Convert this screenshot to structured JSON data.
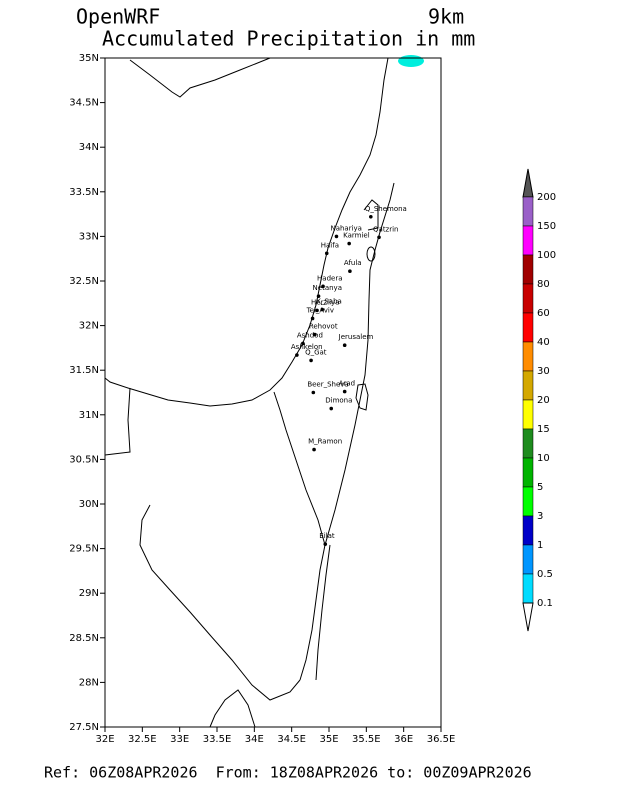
{
  "map": {
    "title": "OpenWRF",
    "resolution": "9km",
    "subtitle": "Accumulated Precipitation in mm",
    "footer": "Ref: 06Z08APR2026  From: 18Z08APR2026 to: 00Z09APR2026",
    "xlim": [
      32,
      36.5
    ],
    "ylim": [
      27.5,
      35
    ],
    "xticks": [
      {
        "value": 32,
        "label": "32E"
      },
      {
        "value": 32.5,
        "label": "32.5E"
      },
      {
        "value": 33,
        "label": "33E"
      },
      {
        "value": 33.5,
        "label": "33.5E"
      },
      {
        "value": 34,
        "label": "34E"
      },
      {
        "value": 34.5,
        "label": "34.5E"
      },
      {
        "value": 35,
        "label": "35E"
      },
      {
        "value": 35.5,
        "label": "35.5E"
      },
      {
        "value": 36,
        "label": "36E"
      },
      {
        "value": 36.5,
        "label": "36.5E"
      }
    ],
    "yticks": [
      {
        "value": 27.5,
        "label": "27.5N"
      },
      {
        "value": 28,
        "label": "28N"
      },
      {
        "value": 28.5,
        "label": "28.5N"
      },
      {
        "value": 29,
        "label": "29N"
      },
      {
        "value": 29.5,
        "label": "29.5N"
      },
      {
        "value": 30,
        "label": "30N"
      },
      {
        "value": 30.5,
        "label": "30.5N"
      },
      {
        "value": 31,
        "label": "31N"
      },
      {
        "value": 31.5,
        "label": "31.5N"
      },
      {
        "value": 32,
        "label": "32N"
      },
      {
        "value": 32.5,
        "label": "32.5N"
      },
      {
        "value": 33,
        "label": "33N"
      },
      {
        "value": 33.5,
        "label": "33.5N"
      },
      {
        "value": 34,
        "label": "34N"
      },
      {
        "value": 34.5,
        "label": "34.5N"
      },
      {
        "value": 35,
        "label": "35N"
      }
    ],
    "cities": [
      {
        "name": "Q_Shemona",
        "lon": 35.56,
        "lat": 33.22
      },
      {
        "name": "Qatzrin",
        "lon": 35.67,
        "lat": 32.99
      },
      {
        "name": "Nahariya",
        "lon": 35.1,
        "lat": 33.0
      },
      {
        "name": "Karmiel",
        "lon": 35.27,
        "lat": 32.92
      },
      {
        "name": "Haifa",
        "lon": 34.97,
        "lat": 32.81
      },
      {
        "name": "Afula",
        "lon": 35.28,
        "lat": 32.61
      },
      {
        "name": "Hadera",
        "lon": 34.92,
        "lat": 32.44
      },
      {
        "name": "Netanya",
        "lon": 34.86,
        "lat": 32.33
      },
      {
        "name": "Herzliya",
        "lon": 34.84,
        "lat": 32.17
      },
      {
        "name": "K_Saba",
        "lon": 34.91,
        "lat": 32.18
      },
      {
        "name": "Tel_Aviv",
        "lon": 34.78,
        "lat": 32.08
      },
      {
        "name": "Rehovot",
        "lon": 34.81,
        "lat": 31.9
      },
      {
        "name": "Ashdod",
        "lon": 34.65,
        "lat": 31.8
      },
      {
        "name": "Ashkelon",
        "lon": 34.57,
        "lat": 31.67
      },
      {
        "name": "Q_Gat",
        "lon": 34.76,
        "lat": 31.61
      },
      {
        "name": "Jerusalem",
        "lon": 35.21,
        "lat": 31.78
      },
      {
        "name": "Beer_Sheva",
        "lon": 34.79,
        "lat": 31.25
      },
      {
        "name": "Arad",
        "lon": 35.21,
        "lat": 31.26
      },
      {
        "name": "Dimona",
        "lon": 35.03,
        "lat": 31.07
      },
      {
        "name": "M_Ramon",
        "lon": 34.8,
        "lat": 30.61
      },
      {
        "name": "Eilat",
        "lon": 34.95,
        "lat": 29.55
      }
    ],
    "colorbar": {
      "levels": [
        200,
        150,
        100,
        80,
        60,
        40,
        30,
        20,
        15,
        10,
        5,
        3,
        1,
        0.5,
        0.1
      ],
      "colors": [
        "#9a5fc8",
        "#ff00ff",
        "#a00000",
        "#c80000",
        "#ff0000",
        "#ff8c00",
        "#d4a800",
        "#ffff00",
        "#1e8c1e",
        "#00b400",
        "#00ff00",
        "#0000c8",
        "#0096ff",
        "#00dcff"
      ],
      "over_color": "#555555",
      "under_color": "#ffffff"
    }
  }
}
